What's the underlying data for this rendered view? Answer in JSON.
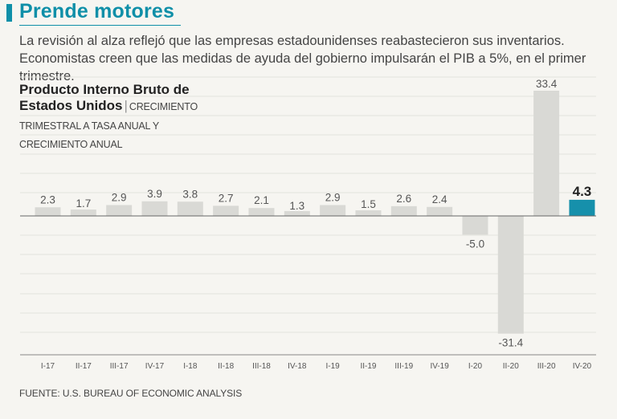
{
  "header": {
    "title": "Prende motores"
  },
  "subtitle": "La revisión al alza reflejó que las empresas estadounidenses reabastecieron sus inventarios. Economistas creen que las medidas de ayuda del gobierno impulsarán el PIB a 5%, en el primer trimestre.",
  "source": "FUENTE: U.S. BUREAU OF ECONOMIC ANALYSIS",
  "colors": {
    "accent": "#0f8fa8",
    "bar": "#d9d9d5",
    "highlight": "#1690ab",
    "label": "#555555"
  },
  "chart_data": {
    "type": "bar",
    "title": "Producto Interno Bruto de Estados Unidos",
    "subtitle_part1": "CRECIMIENTO",
    "subtitle_part2": "TRIMESTRAL A TASA ANUAL Y CRECIMIENTO ANUAL",
    "xlabel": "",
    "ylabel": "",
    "ylim": [
      -40,
      40
    ],
    "grid": true,
    "categories": [
      "I-17",
      "II-17",
      "III-17",
      "IV-17",
      "I-18",
      "II-18",
      "III-18",
      "IV-18",
      "I-19",
      "II-19",
      "III-19",
      "IV-19",
      "I-20",
      "II-20",
      "III-20",
      "IV-20"
    ],
    "values": [
      2.3,
      1.7,
      2.9,
      3.9,
      3.8,
      2.7,
      2.1,
      1.3,
      2.9,
      1.5,
      2.6,
      2.4,
      -5.0,
      -31.4,
      33.4,
      4.3
    ],
    "value_labels": [
      "2.3",
      "1.7",
      "2.9",
      "3.9",
      "3.8",
      "2.7",
      "2.1",
      "1.3",
      "2.9",
      "1.5",
      "2.6",
      "2.4",
      "-5.0",
      "-31.4",
      "33.4",
      "4.3"
    ],
    "highlight_index": 15
  }
}
